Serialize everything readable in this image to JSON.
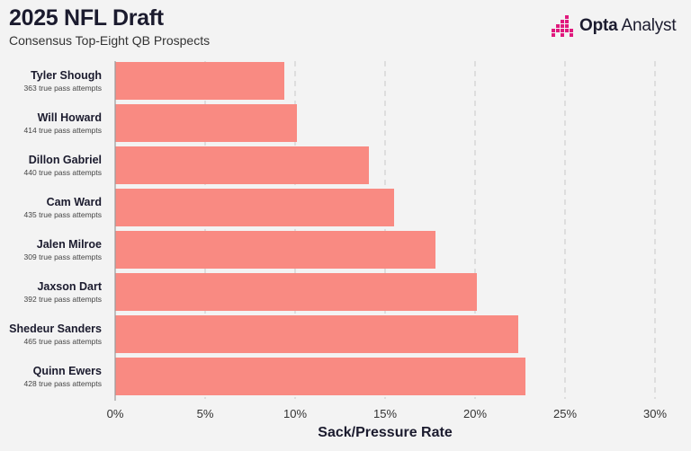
{
  "header": {
    "title": "2025 NFL Draft",
    "subtitle": "Consensus Top-Eight QB Prospects"
  },
  "brand": {
    "name_bold": "Opta",
    "name_light": "Analyst",
    "accent_color": "#e0197d"
  },
  "chart_data": {
    "type": "bar",
    "orientation": "horizontal",
    "categories": [
      "Tyler Shough",
      "Will Howard",
      "Dillon Gabriel",
      "Cam Ward",
      "Jalen Milroe",
      "Jaxson Dart",
      "Shedeur Sanders",
      "Quinn Ewers"
    ],
    "sublabels": [
      "363 true pass attempts",
      "414 true pass attempts",
      "440 true pass attempts",
      "435 true pass attempts",
      "309 true pass attempts",
      "392 true pass attempts",
      "465 true pass attempts",
      "428 true pass attempts"
    ],
    "values": [
      9.4,
      10.1,
      14.1,
      15.5,
      17.8,
      20.1,
      22.4,
      22.8
    ],
    "xlabel": "Sack/Pressure Rate",
    "xlim": [
      0,
      30
    ],
    "xticks": [
      "0%",
      "5%",
      "10%",
      "15%",
      "20%",
      "25%",
      "30%"
    ],
    "bar_color": "#f98a82",
    "grid": true
  }
}
